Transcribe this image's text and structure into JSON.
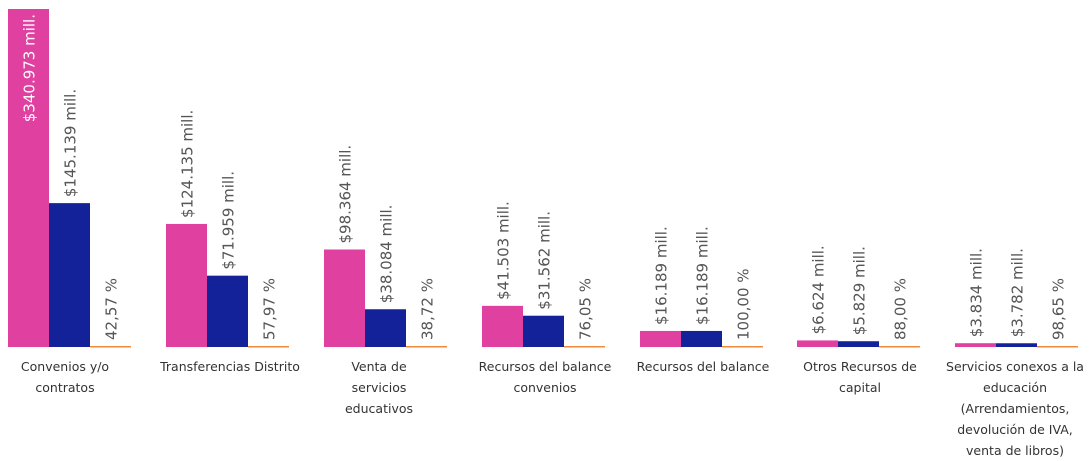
{
  "chart_data": {
    "type": "bar",
    "categories": [
      "Convenios y/o contratos",
      "Transferencias Distrito",
      "Venta de servicios educativos",
      "Recursos del balance convenios",
      "Recursos del balance",
      "Otros Recursos de capital",
      "Servicios conexos a la educación (Arrendamientos, devolución de IVA, venta de libros)"
    ],
    "series": [
      {
        "color": "#e040a0",
        "values": [
          340973,
          124135,
          98364,
          41503,
          16189,
          6624,
          3834
        ],
        "data_labels": [
          "$340.973 mill.",
          "$124.135 mill.",
          "$98.364 mill.",
          "$41.503 mill.",
          "$16.189 mill.",
          "$6.624 mill.",
          "$3.834 mill."
        ]
      },
      {
        "color": "#14229a",
        "values": [
          145139,
          71959,
          38084,
          31562,
          16189,
          5829,
          3782
        ],
        "data_labels": [
          "$145.139 mill.",
          "$71.959 mill.",
          "$38.084 mill.",
          "$31.562 mill.",
          "$16.189 mill.",
          "$5.829 mill.",
          "$3.782 mill."
        ]
      },
      {
        "color": "#f08a3c",
        "values": [
          42.57,
          57.97,
          38.72,
          76.05,
          100.0,
          88.0,
          98.65
        ],
        "data_labels": [
          "42,57 %",
          "57,97 %",
          "38,72 %",
          "76,05 %",
          "100,00 %",
          "88,00 %",
          "98,65 %"
        ]
      }
    ],
    "ylim": [
      0,
      340973
    ],
    "grid": false,
    "legend": "none",
    "title": "",
    "xlabel": "",
    "ylabel": ""
  }
}
